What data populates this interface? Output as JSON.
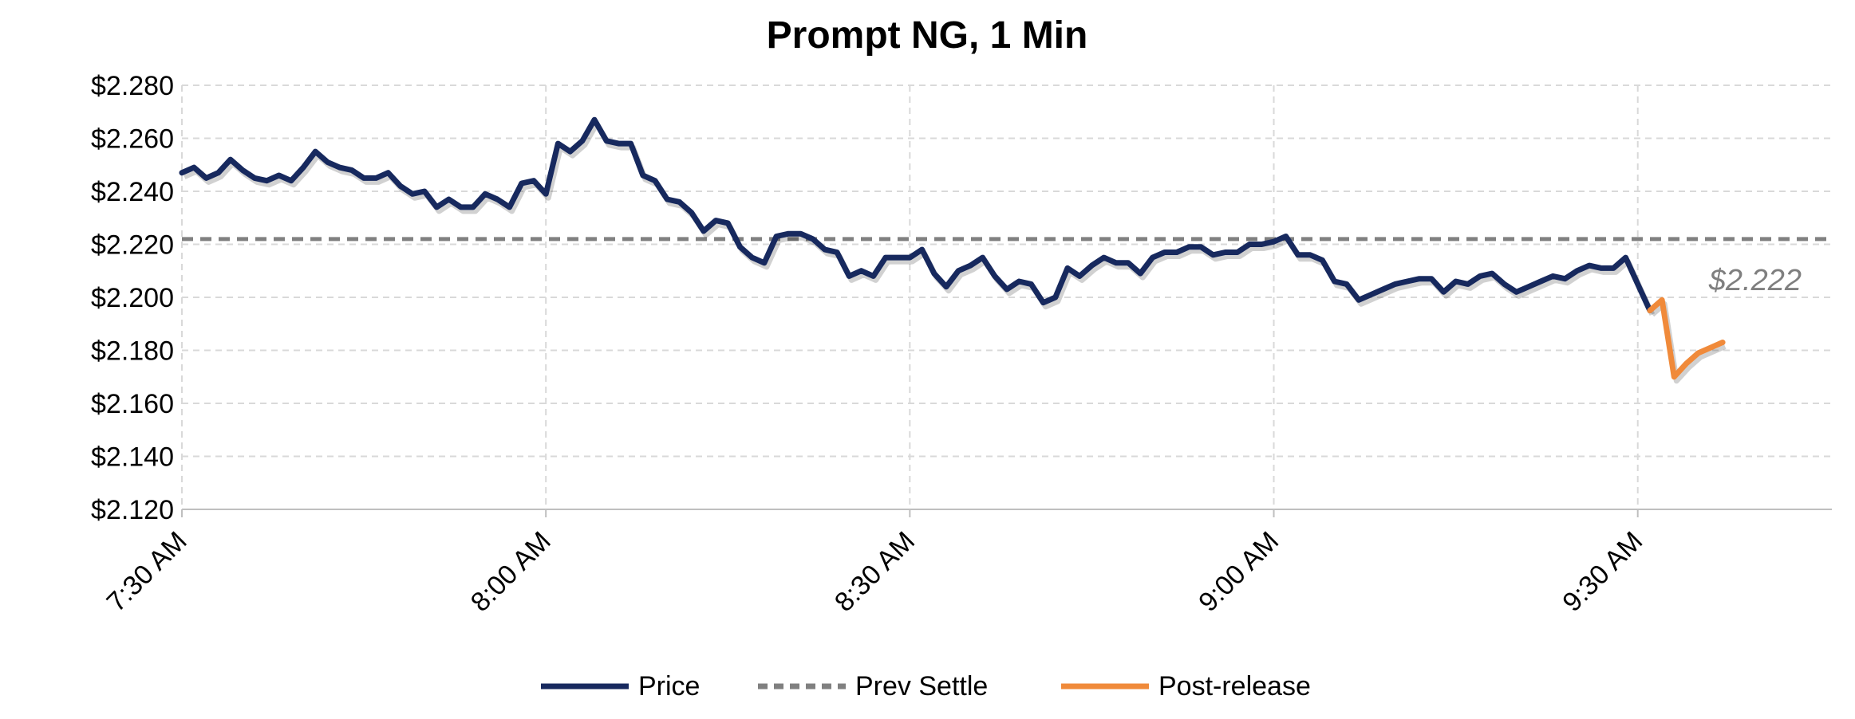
{
  "chart_data": {
    "type": "line",
    "title": "Prompt NG, 1 Min",
    "xlabel": "",
    "ylabel": "",
    "ylim": [
      2.12,
      2.28
    ],
    "yticks": [
      "$2.280",
      "$2.260",
      "$2.240",
      "$2.220",
      "$2.200",
      "$2.180",
      "$2.160",
      "$2.140",
      "$2.120"
    ],
    "xticks": [
      "7:30 AM",
      "8:00 AM",
      "8:30 AM",
      "9:00 AM",
      "9:30 AM"
    ],
    "xlim_minutes": [
      0,
      136
    ],
    "grid": true,
    "legend_position": "bottom",
    "colors": {
      "price": "#17295e",
      "prev_settle": "#808080",
      "post_release": "#f08a3a"
    },
    "series": [
      {
        "name": "Price",
        "x": [
          0,
          1,
          2,
          3,
          4,
          5,
          6,
          7,
          8,
          9,
          10,
          11,
          12,
          13,
          14,
          15,
          16,
          17,
          18,
          19,
          20,
          21,
          22,
          23,
          24,
          25,
          26,
          27,
          28,
          29,
          30,
          31,
          32,
          33,
          34,
          35,
          36,
          37,
          38,
          39,
          40,
          41,
          42,
          43,
          44,
          45,
          46,
          47,
          48,
          49,
          50,
          51,
          52,
          53,
          54,
          55,
          56,
          57,
          58,
          59,
          60,
          61,
          62,
          63,
          64,
          65,
          66,
          67,
          68,
          69,
          70,
          71,
          72,
          73,
          74,
          75,
          76,
          77,
          78,
          79,
          80,
          81,
          82,
          83,
          84,
          85,
          86,
          87,
          88,
          89,
          90,
          91,
          92,
          93,
          94,
          95,
          96,
          97,
          98,
          99,
          100,
          101,
          102,
          103,
          104,
          105,
          106,
          107,
          108,
          109,
          110,
          111,
          112,
          113,
          114,
          115,
          116,
          117,
          118,
          119,
          120,
          121
        ],
        "values": [
          2.247,
          2.249,
          2.245,
          2.247,
          2.252,
          2.248,
          2.245,
          2.244,
          2.246,
          2.244,
          2.249,
          2.255,
          2.251,
          2.249,
          2.248,
          2.245,
          2.245,
          2.247,
          2.242,
          2.239,
          2.24,
          2.234,
          2.237,
          2.234,
          2.234,
          2.239,
          2.237,
          2.234,
          2.243,
          2.244,
          2.239,
          2.258,
          2.255,
          2.259,
          2.267,
          2.259,
          2.258,
          2.258,
          2.246,
          2.244,
          2.237,
          2.236,
          2.232,
          2.225,
          2.229,
          2.228,
          2.219,
          2.215,
          2.213,
          2.223,
          2.224,
          2.224,
          2.222,
          2.218,
          2.217,
          2.208,
          2.21,
          2.208,
          2.215,
          2.215,
          2.215,
          2.218,
          2.209,
          2.204,
          2.21,
          2.212,
          2.215,
          2.208,
          2.203,
          2.206,
          2.205,
          2.198,
          2.2,
          2.211,
          2.208,
          2.212,
          2.215,
          2.213,
          2.213,
          2.209,
          2.215,
          2.217,
          2.217,
          2.219,
          2.219,
          2.216,
          2.217,
          2.217,
          2.22,
          2.22,
          2.221,
          2.223,
          2.216,
          2.216,
          2.214,
          2.206,
          2.205,
          2.199,
          2.201,
          2.203,
          2.205,
          2.206,
          2.207,
          2.207,
          2.202,
          2.206,
          2.205,
          2.208,
          2.209,
          2.205,
          2.202,
          2.204,
          2.206,
          2.208,
          2.207,
          2.21,
          2.212,
          2.211,
          2.211,
          2.215,
          2.205,
          2.195
        ]
      },
      {
        "name": "Prev Settle",
        "value": 2.222
      },
      {
        "name": "Post-release",
        "x": [
          121,
          122,
          123,
          124,
          125,
          126,
          127
        ],
        "values": [
          2.195,
          2.199,
          2.17,
          2.175,
          2.179,
          2.181,
          2.183
        ]
      }
    ],
    "annotations": [
      {
        "text": "$2.222"
      }
    ]
  }
}
